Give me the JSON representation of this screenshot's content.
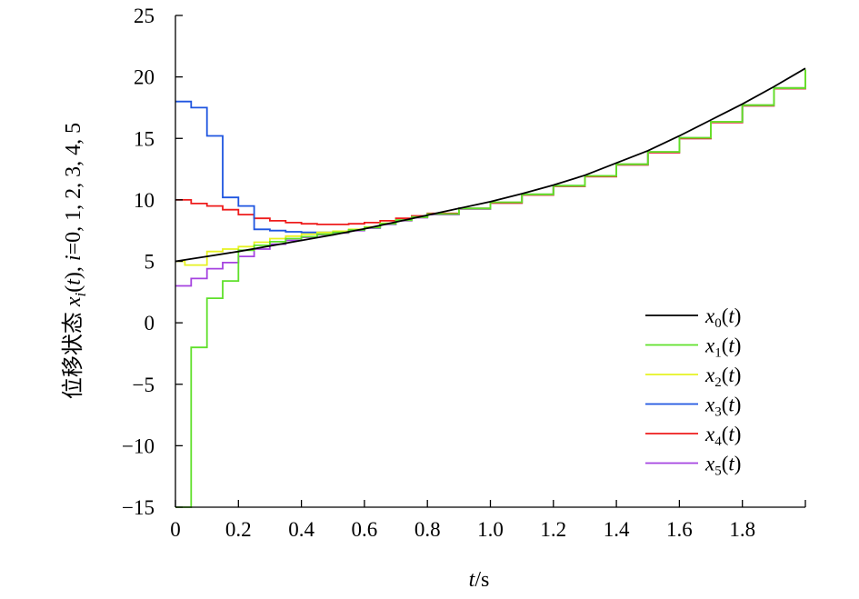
{
  "chart_data": {
    "type": "line",
    "title": "",
    "xlabel": {
      "italic": "t",
      "rest": "/s"
    },
    "ylabel": {
      "prefix": "位移状态 ",
      "italic_x": "x",
      "italic_i": "i",
      "mid": "(",
      "italic_t": "t",
      "tail": "), ",
      "italic_i2": "i",
      "end": "=0, 1, 2, 3, 4, 5"
    },
    "xlim": [
      0,
      2.0
    ],
    "ylim": [
      -15,
      25
    ],
    "x_ticks": [
      0,
      0.2,
      0.4,
      0.6,
      0.8,
      1.0,
      1.2,
      1.4,
      1.6,
      1.8
    ],
    "x_tick_labels": [
      "0",
      "0.2",
      "0.4",
      "0.6",
      "0.8",
      "1.0",
      "1.2",
      "1.4",
      "1.6",
      "1.8"
    ],
    "y_ticks": [
      -15,
      -10,
      -5,
      0,
      5,
      10,
      15,
      20,
      25
    ],
    "y_tick_labels": [
      "−15",
      "−10",
      "−5",
      "0",
      "5",
      "10",
      "15",
      "20",
      "25"
    ],
    "legend_position": "bottom-right",
    "series": [
      {
        "name": "x0(t)",
        "sub": "0",
        "color": "#000000",
        "step": false,
        "x": [
          0,
          0.1,
          0.2,
          0.3,
          0.4,
          0.5,
          0.6,
          0.7,
          0.8,
          0.9,
          1.0,
          1.1,
          1.2,
          1.3,
          1.4,
          1.5,
          1.6,
          1.7,
          1.8,
          1.9,
          2.0
        ],
        "y": [
          5.0,
          5.4,
          5.8,
          6.25,
          6.7,
          7.15,
          7.65,
          8.2,
          8.75,
          9.3,
          9.85,
          10.5,
          11.2,
          12.0,
          13.0,
          14.0,
          15.2,
          16.5,
          17.8,
          19.2,
          20.7
        ]
      },
      {
        "name": "x1(t)",
        "sub": "1",
        "color": "#5fe02a",
        "step": true,
        "x": [
          0,
          0.05,
          0.1,
          0.15,
          0.2,
          0.25,
          0.3,
          0.35,
          0.4,
          0.45,
          0.5,
          0.55,
          0.6,
          0.65,
          0.7,
          0.75,
          0.8,
          0.9,
          1.0,
          1.1,
          1.2,
          1.3,
          1.4,
          1.5,
          1.6,
          1.7,
          1.8,
          1.9,
          2.0
        ],
        "y": [
          -15.0,
          -2.0,
          2.0,
          3.4,
          5.9,
          6.3,
          6.6,
          6.85,
          7.0,
          7.2,
          7.35,
          7.55,
          7.75,
          8.05,
          8.35,
          8.6,
          8.85,
          9.3,
          9.8,
          10.45,
          11.15,
          11.95,
          12.9,
          13.9,
          15.05,
          16.35,
          17.7,
          19.1,
          20.6
        ]
      },
      {
        "name": "x2(t)",
        "sub": "2",
        "color": "#e6f222",
        "step": true,
        "x": [
          0,
          0.03,
          0.1,
          0.15,
          0.2,
          0.25,
          0.3,
          0.35,
          0.4,
          0.45,
          0.5,
          0.55,
          0.6,
          0.65,
          0.7,
          0.75,
          0.8,
          0.9,
          1.0,
          1.1,
          1.2,
          1.3,
          1.4,
          1.5,
          1.6,
          1.7,
          1.8,
          1.9,
          2.0
        ],
        "y": [
          5.0,
          4.7,
          5.8,
          6.0,
          6.2,
          6.55,
          6.85,
          7.05,
          7.2,
          7.35,
          7.45,
          7.6,
          7.8,
          8.1,
          8.35,
          8.6,
          8.85,
          9.3,
          9.8,
          10.45,
          11.15,
          11.95,
          12.9,
          13.9,
          15.05,
          16.35,
          17.7,
          19.1,
          20.6
        ]
      },
      {
        "name": "x3(t)",
        "sub": "3",
        "color": "#1f55e0",
        "step": true,
        "x": [
          0,
          0.05,
          0.1,
          0.15,
          0.2,
          0.25,
          0.3,
          0.35,
          0.4,
          0.45,
          0.5,
          0.55,
          0.6,
          0.65,
          0.7,
          0.75,
          0.8,
          0.9,
          1.0,
          1.1,
          1.2,
          1.3,
          1.4,
          1.5,
          1.6,
          1.7,
          1.8,
          1.9,
          2.0
        ],
        "y": [
          18.0,
          17.5,
          15.2,
          10.2,
          9.5,
          7.6,
          7.5,
          7.4,
          7.35,
          7.35,
          7.4,
          7.55,
          7.75,
          8.05,
          8.35,
          8.6,
          8.85,
          9.3,
          9.8,
          10.45,
          11.15,
          11.95,
          12.9,
          13.9,
          15.05,
          16.35,
          17.7,
          19.1,
          20.6
        ]
      },
      {
        "name": "x4(t)",
        "sub": "4",
        "color": "#ee1c1c",
        "step": true,
        "x": [
          0,
          0.05,
          0.1,
          0.15,
          0.2,
          0.25,
          0.3,
          0.35,
          0.4,
          0.45,
          0.5,
          0.55,
          0.6,
          0.65,
          0.7,
          0.75,
          0.8,
          0.9,
          1.0,
          1.1,
          1.2,
          1.3,
          1.4,
          1.5,
          1.6,
          1.7,
          1.8,
          1.9,
          2.0
        ],
        "y": [
          10.0,
          9.7,
          9.5,
          9.2,
          8.8,
          8.5,
          8.3,
          8.15,
          8.05,
          8.0,
          8.0,
          8.05,
          8.15,
          8.3,
          8.5,
          8.7,
          8.9,
          9.3,
          9.75,
          10.4,
          11.1,
          11.9,
          12.85,
          13.85,
          15.0,
          16.3,
          17.65,
          19.05,
          20.6
        ]
      },
      {
        "name": "x5(t)",
        "sub": "5",
        "color": "#a543e0",
        "step": true,
        "x": [
          0,
          0.05,
          0.1,
          0.15,
          0.2,
          0.25,
          0.3,
          0.35,
          0.4,
          0.45,
          0.5,
          0.55,
          0.6,
          0.65,
          0.7,
          0.75,
          0.8,
          0.9,
          1.0,
          1.1,
          1.2,
          1.3,
          1.4,
          1.5,
          1.6,
          1.7,
          1.8,
          1.9,
          2.0
        ],
        "y": [
          3.0,
          3.6,
          4.4,
          4.9,
          5.4,
          6.0,
          6.4,
          6.7,
          6.95,
          7.15,
          7.3,
          7.5,
          7.7,
          8.0,
          8.3,
          8.55,
          8.8,
          9.25,
          9.75,
          10.4,
          11.1,
          11.9,
          12.85,
          13.85,
          15.0,
          16.3,
          17.65,
          19.05,
          20.55
        ]
      }
    ]
  }
}
